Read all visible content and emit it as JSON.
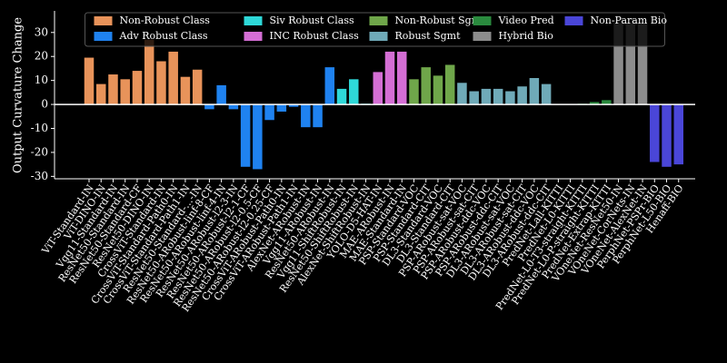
{
  "chart_data": {
    "type": "bar",
    "y_label": "Output Curvature Change",
    "categories": [
      "ViT-Standard-IN",
      "ViT-DINO-IN",
      "Vgg11-Standard-IN",
      "ResNet50-Standard-IN",
      "ResNet50-Standard-CF",
      "ResNet50-DINO-IN",
      "CrossViT-Standard-IN",
      "CrossViT-Standard-Path0-IN",
      "CrossViT-Standard-Path1-IN",
      "ResNet50-Standard-...-IN",
      "ResNet50-ARobust-linf-8-CF",
      "ResNet50-ARobust-linf-4-IN",
      "ResNet50-ARobust-l2-3-IN",
      "ResNet50-ARobust-l2-1-CF",
      "ResNet50-ARobust-l2-0.5-CF",
      "ResNet50-ARobust-l2-0.25-CF",
      "CrossViT-ARobust-Path0-IN",
      "CrossViT-ARobust-Path1-IN",
      "AlexNet-ARobust-IN",
      "Vgg11-ARobust-IN",
      "ResNet50-ARobust-IN",
      "Vgg11-ShiftRobust-IN",
      "ResNet50-ShiftRobust-IN",
      "AlexNet-ShiftRobust-IN",
      "YOLO-D5-HAT-IN",
      "MAE-ARobust-IN",
      "MAE-Standard-IN",
      "PSP-Standard-VOC",
      "PSP-Standard-CIT",
      "DL3-Standard-VOC",
      "DL3-Standard-CIT",
      "PSP-ARobust-sat-VOC",
      "PSP-ARobust-sat-CIT",
      "PSP-ARobust-ddc-VOC",
      "PSP-ARobust-ddc-CIT",
      "DL3-ARobust-sat-VOC",
      "DL3-ARobust-sat-CIT",
      "DL3-ARobust-ddc-VOC",
      "DL3-ARobust-ddc-CIT",
      "PredNet-Lall-KITTI",
      "PredNet-L0-KITTI",
      "PredNet-L0-T3-straight-KITTI",
      "PredNet-L0-P-straight-KITTI",
      "PredNet-Extrap-KITTI",
      "VOneNet-ResNet50-IN",
      "VOneNet-CorNets-IN",
      "VOneNet-AlexNet-IN",
      "PerphNet-PSPr-BIO",
      "PerphNet-L50-BIO",
      "Henaff-BIO"
    ],
    "series": [
      {
        "name": "Non-Robust Class",
        "color": "#e8935a",
        "values": [
          19.5,
          8.5,
          12.5,
          10.5,
          14,
          27,
          18,
          22,
          11.5,
          14.5,
          null,
          null,
          null,
          null,
          null,
          null,
          null,
          null,
          null,
          null,
          null,
          null,
          null,
          null,
          null,
          null,
          null,
          null,
          null,
          null,
          null,
          null,
          null,
          null,
          null,
          null,
          null,
          null,
          null,
          null,
          null,
          null,
          null,
          null,
          null,
          null,
          null,
          null,
          null,
          null
        ]
      },
      {
        "name": "Adv Robust Class",
        "color": "#1f82f0",
        "values": [
          null,
          null,
          null,
          null,
          null,
          null,
          null,
          null,
          null,
          null,
          -2,
          8,
          -2,
          -26,
          -27,
          -6.5,
          -3,
          -1,
          -9.5,
          -9.5,
          15.5,
          null,
          null,
          null,
          null,
          null,
          null,
          null,
          null,
          null,
          null,
          null,
          null,
          null,
          null,
          null,
          null,
          null,
          null,
          null,
          null,
          null,
          null,
          null,
          null,
          null,
          null,
          null,
          null,
          null
        ]
      },
      {
        "name": "Siv Robust Class",
        "color": "#2ed8d8",
        "values": [
          null,
          null,
          null,
          null,
          null,
          null,
          null,
          null,
          null,
          null,
          null,
          null,
          null,
          null,
          null,
          null,
          null,
          null,
          null,
          null,
          null,
          6.5,
          10.5,
          0.3,
          null,
          null,
          null,
          null,
          null,
          null,
          null,
          null,
          null,
          null,
          null,
          null,
          null,
          null,
          null,
          null,
          null,
          null,
          null,
          null,
          null,
          null,
          null,
          null,
          null,
          null
        ]
      },
      {
        "name": "INC Robust Class",
        "color": "#d46ed4",
        "values": [
          null,
          null,
          null,
          null,
          null,
          null,
          null,
          null,
          null,
          null,
          null,
          null,
          null,
          null,
          null,
          null,
          null,
          null,
          null,
          null,
          null,
          null,
          null,
          null,
          13.5,
          22,
          22,
          null,
          null,
          null,
          null,
          null,
          null,
          null,
          null,
          null,
          null,
          null,
          null,
          null,
          null,
          null,
          null,
          null,
          null,
          null,
          null,
          null,
          null,
          null
        ]
      },
      {
        "name": "Non-Robust Sgmt",
        "color": "#6fa64a",
        "values": [
          null,
          null,
          null,
          null,
          null,
          null,
          null,
          null,
          null,
          null,
          null,
          null,
          null,
          null,
          null,
          null,
          null,
          null,
          null,
          null,
          null,
          null,
          null,
          null,
          null,
          null,
          null,
          10.5,
          15.5,
          12,
          16.5,
          null,
          null,
          null,
          null,
          null,
          null,
          null,
          null,
          null,
          null,
          null,
          null,
          null,
          null,
          null,
          null,
          null,
          null,
          null
        ]
      },
      {
        "name": "Robust Sgmt",
        "color": "#6faab8",
        "values": [
          null,
          null,
          null,
          null,
          null,
          null,
          null,
          null,
          null,
          null,
          null,
          null,
          null,
          null,
          null,
          null,
          null,
          null,
          null,
          null,
          null,
          null,
          null,
          null,
          null,
          null,
          null,
          null,
          null,
          null,
          null,
          9,
          5.5,
          6.5,
          6.5,
          5.5,
          7.5,
          11,
          8.5,
          null,
          null,
          null,
          null,
          null,
          null,
          null,
          null,
          null,
          null,
          null
        ]
      },
      {
        "name": "Video Pred",
        "color": "#2a8a3e",
        "values": [
          null,
          null,
          null,
          null,
          null,
          null,
          null,
          null,
          null,
          null,
          null,
          null,
          null,
          null,
          null,
          null,
          null,
          null,
          null,
          null,
          null,
          null,
          null,
          null,
          null,
          null,
          null,
          null,
          null,
          null,
          null,
          null,
          null,
          null,
          null,
          null,
          null,
          null,
          null,
          0.1,
          0.2,
          0.3,
          1,
          1.8,
          null,
          null,
          null,
          null,
          null,
          null
        ]
      },
      {
        "name": "Hybrid Bio",
        "color": "#8c8c8c",
        "values": [
          null,
          null,
          null,
          null,
          null,
          null,
          null,
          null,
          null,
          null,
          null,
          null,
          null,
          null,
          null,
          null,
          null,
          null,
          null,
          null,
          null,
          null,
          null,
          null,
          null,
          null,
          null,
          null,
          null,
          null,
          null,
          null,
          null,
          null,
          null,
          null,
          null,
          null,
          null,
          null,
          null,
          null,
          null,
          null,
          34,
          34,
          34,
          null,
          null,
          null
        ]
      },
      {
        "name": "Non-Param Bio",
        "color": "#4a46d8",
        "values": [
          null,
          null,
          null,
          null,
          null,
          null,
          null,
          null,
          null,
          null,
          null,
          null,
          null,
          null,
          null,
          null,
          null,
          null,
          null,
          null,
          null,
          null,
          null,
          null,
          null,
          null,
          null,
          null,
          null,
          null,
          null,
          null,
          null,
          null,
          null,
          null,
          null,
          null,
          null,
          null,
          null,
          null,
          null,
          null,
          null,
          null,
          null,
          -24,
          -26,
          -25
        ]
      }
    ],
    "ylim": [
      -31,
      39
    ],
    "yticks": [
      -30,
      -20,
      -10,
      0,
      10,
      20,
      30
    ],
    "grid": false,
    "legend_loc": "upper center"
  }
}
